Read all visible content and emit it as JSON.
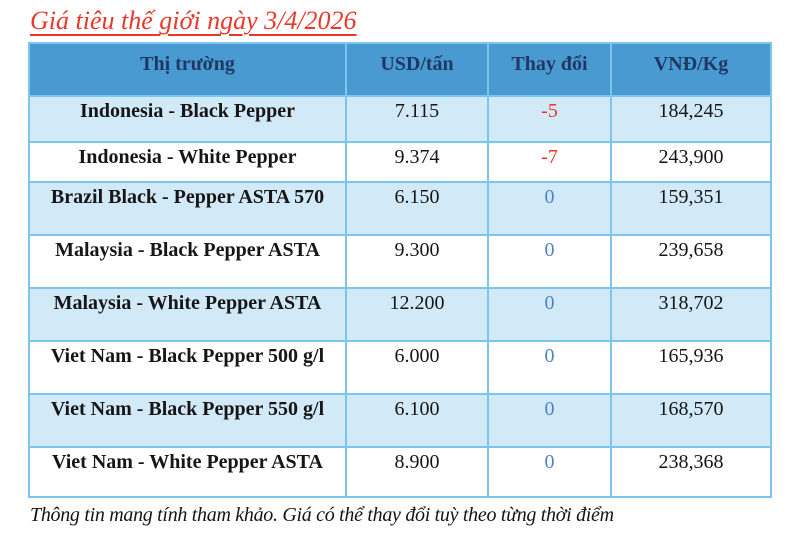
{
  "page": {
    "title": "Giá tiêu thế giới ngày 3/4/2026",
    "footnote": "Thông tin mang tính tham khảo. Giá có thể thay đổi tuỳ theo từng thời điểm"
  },
  "colors": {
    "title_red": "#e8382a",
    "header_bg": "#4a9ad2",
    "header_text": "#1f3864",
    "row_shaded_bg": "#d2e9f8",
    "cell_border": "#7cc5ec",
    "change_negative": "#ee3424",
    "change_zero": "#4f81c7"
  },
  "table": {
    "columns": [
      "Thị trường",
      "USD/tấn",
      "Thay đổi",
      "VNĐ/Kg"
    ],
    "rows": [
      {
        "market": "Indonesia - Black Pepper",
        "usd_per_ton": "7.115",
        "change": "-5",
        "vnd_per_kg": "184,245"
      },
      {
        "market": "Indonesia - White Pepper",
        "usd_per_ton": "9.374",
        "change": "-7",
        "vnd_per_kg": "243,900"
      },
      {
        "market": "Brazil Black - Pepper ASTA 570",
        "usd_per_ton": "6.150",
        "change": "0",
        "vnd_per_kg": "159,351"
      },
      {
        "market": "Malaysia - Black Pepper ASTA",
        "usd_per_ton": "9.300",
        "change": "0",
        "vnd_per_kg": "239,658"
      },
      {
        "market": "Malaysia - White Pepper ASTA",
        "usd_per_ton": "12.200",
        "change": "0",
        "vnd_per_kg": "318,702"
      },
      {
        "market": "Viet Nam - Black Pepper 500 g/l",
        "usd_per_ton": "6.000",
        "change": "0",
        "vnd_per_kg": "165,936"
      },
      {
        "market": "Viet Nam - Black Pepper 550 g/l",
        "usd_per_ton": "6.100",
        "change": "0",
        "vnd_per_kg": "168,570"
      },
      {
        "market": "Viet Nam - White Pepper ASTA",
        "usd_per_ton": "8.900",
        "change": "0",
        "vnd_per_kg": "238,368"
      }
    ]
  }
}
